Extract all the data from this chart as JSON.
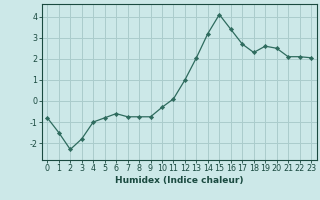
{
  "x": [
    0,
    1,
    2,
    3,
    4,
    5,
    6,
    7,
    8,
    9,
    10,
    11,
    12,
    13,
    14,
    15,
    16,
    17,
    18,
    19,
    20,
    21,
    22,
    23
  ],
  "y": [
    -0.8,
    -1.5,
    -2.3,
    -1.8,
    -1.0,
    -0.8,
    -0.6,
    -0.75,
    -0.75,
    -0.75,
    -0.3,
    0.1,
    1.0,
    2.05,
    3.2,
    4.1,
    3.4,
    2.7,
    2.3,
    2.6,
    2.5,
    2.1,
    2.1,
    2.05
  ],
  "line_color": "#2e6b5e",
  "marker": "D",
  "marker_size": 2.2,
  "bg_color": "#cce8e8",
  "grid_color": "#aacccc",
  "xlabel": "Humidex (Indice chaleur)",
  "xlim": [
    -0.5,
    23.5
  ],
  "ylim": [
    -2.8,
    4.6
  ],
  "yticks": [
    -2,
    -1,
    0,
    1,
    2,
    3,
    4
  ],
  "xticks": [
    0,
    1,
    2,
    3,
    4,
    5,
    6,
    7,
    8,
    9,
    10,
    11,
    12,
    13,
    14,
    15,
    16,
    17,
    18,
    19,
    20,
    21,
    22,
    23
  ],
  "tick_color": "#1a4a40",
  "label_fontsize": 6.5,
  "tick_fontsize": 5.8
}
